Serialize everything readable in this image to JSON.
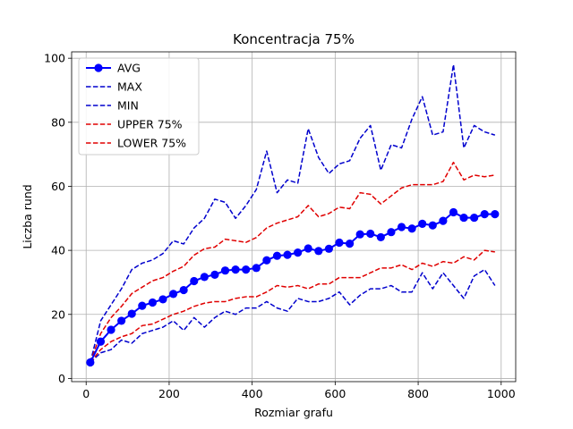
{
  "chart_data": {
    "type": "line",
    "title": "Koncentracja 75%",
    "xlabel": "Rozmiar grafu",
    "ylabel": "Liczba rund",
    "xlim": [
      -35,
      1035
    ],
    "ylim": [
      -1,
      102
    ],
    "xticks": [
      0,
      200,
      400,
      600,
      800,
      1000
    ],
    "yticks": [
      0,
      20,
      40,
      60,
      80,
      100
    ],
    "grid": true,
    "legend_position": "top-left",
    "x": [
      10,
      35,
      60,
      85,
      110,
      135,
      160,
      185,
      210,
      235,
      260,
      285,
      310,
      335,
      360,
      385,
      410,
      435,
      460,
      485,
      510,
      535,
      560,
      585,
      610,
      635,
      660,
      685,
      710,
      735,
      760,
      785,
      810,
      835,
      860,
      885,
      910,
      935,
      960,
      985
    ],
    "series": [
      {
        "name": "AVG",
        "color": "#0000ff",
        "style": "solid",
        "marker": "circle",
        "values": [
          5,
          11.5,
          15.2,
          18,
          20.2,
          22.7,
          23.7,
          24.7,
          26.4,
          27.6,
          30.4,
          31.7,
          32.4,
          33.7,
          34,
          34,
          34.5,
          36.9,
          38.3,
          38.6,
          39.3,
          40.6,
          39.8,
          40.5,
          42.4,
          42.1,
          45,
          45.2,
          44.1,
          45.7,
          47.3,
          46.8,
          48.3,
          47.8,
          49.2,
          51.9,
          50.2,
          50.2,
          51.3,
          51.3
        ]
      },
      {
        "name": "MAX",
        "color": "#0000cd",
        "style": "dashed",
        "values": [
          5,
          18,
          23,
          28,
          34,
          36,
          37,
          39,
          43,
          42,
          47,
          50,
          56,
          55,
          50,
          54,
          59,
          71,
          58,
          62,
          61,
          78,
          69,
          64,
          67,
          68,
          75,
          79,
          65,
          73,
          72,
          81,
          88,
          76,
          77,
          98,
          72,
          79,
          77,
          76
        ]
      },
      {
        "name": "MIN",
        "color": "#0000cd",
        "style": "dashed",
        "values": [
          5,
          8,
          9,
          12,
          11,
          14,
          15,
          16,
          18,
          15,
          19,
          16,
          19,
          21,
          20,
          22,
          22,
          24,
          22,
          21,
          25,
          24,
          24,
          25,
          27,
          23,
          26,
          28,
          28,
          29,
          27,
          27,
          33,
          28,
          33,
          29,
          25,
          32,
          34,
          29
        ]
      },
      {
        "name": "UPPER 75%",
        "color": "#e00000",
        "style": "dashed",
        "values": [
          5,
          14,
          19,
          22.5,
          26.5,
          28.5,
          30.5,
          31.5,
          33.5,
          35,
          38.5,
          40.5,
          41,
          43.5,
          43,
          42.5,
          44,
          47,
          48.5,
          49.5,
          50.5,
          54,
          50.5,
          51.5,
          53.5,
          53,
          58,
          57.5,
          54.5,
          57,
          59.5,
          60.5,
          60.5,
          60.5,
          61.5,
          67.5,
          62,
          63.5,
          63,
          63.5
        ]
      },
      {
        "name": "LOWER 75%",
        "color": "#e00000",
        "style": "dashed",
        "values": [
          5,
          9,
          11.5,
          13,
          14,
          16.5,
          17,
          18.5,
          20,
          21,
          22.5,
          23.5,
          24,
          24,
          25,
          25.5,
          25.5,
          27,
          29,
          28.5,
          29,
          28,
          29.5,
          29.5,
          31.5,
          31.5,
          31.5,
          33,
          34.5,
          34.5,
          35.5,
          34,
          36,
          35,
          36.5,
          36,
          38,
          37,
          40,
          39.5
        ]
      }
    ]
  }
}
